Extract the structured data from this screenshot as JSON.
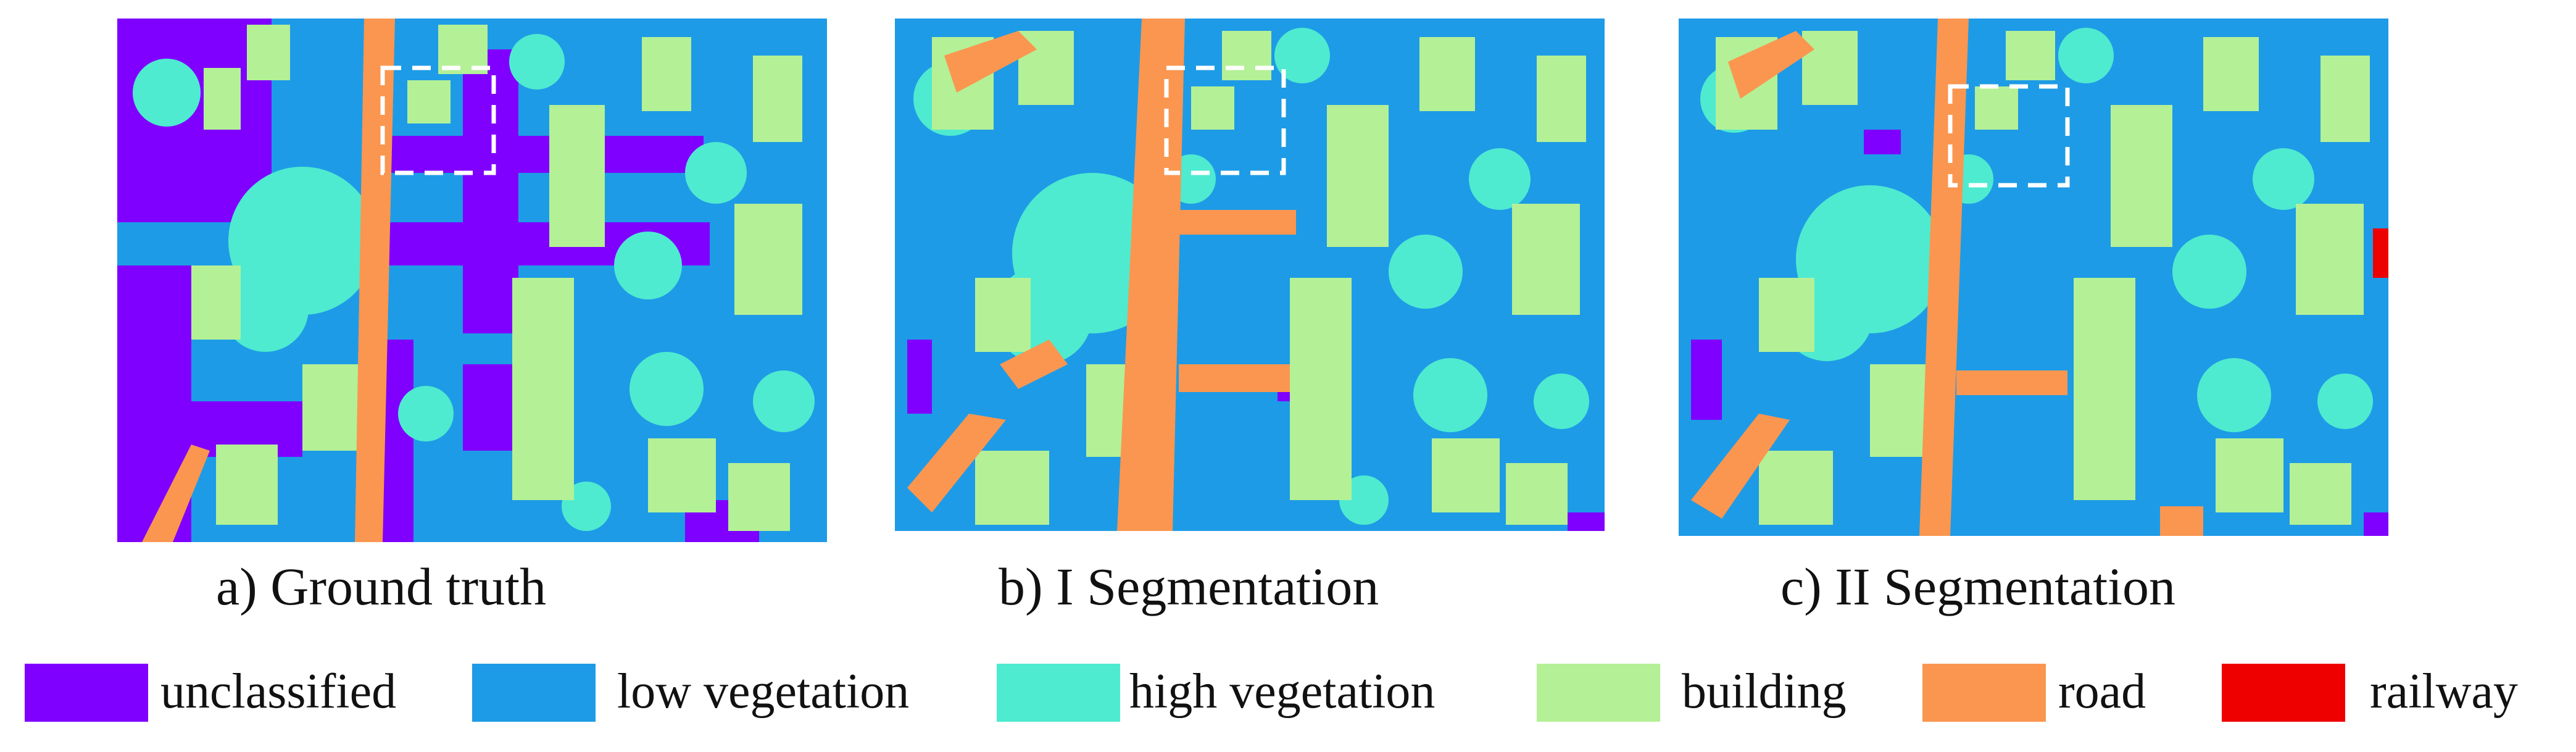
{
  "panels": [
    {
      "caption": "a) Ground truth"
    },
    {
      "caption": "b) I Segmentation"
    },
    {
      "caption": "c) II Segmentation"
    }
  ],
  "legend": [
    {
      "label": "unclassified",
      "color": "#7F00FF"
    },
    {
      "label": "low vegetation",
      "color": "#1E9BE6"
    },
    {
      "label": "high vegetation",
      "color": "#4EEBD0"
    },
    {
      "label": "building",
      "color": "#B4F096"
    },
    {
      "label": "road",
      "color": "#FA9650"
    },
    {
      "label": "railway",
      "color": "#EE0000"
    }
  ]
}
